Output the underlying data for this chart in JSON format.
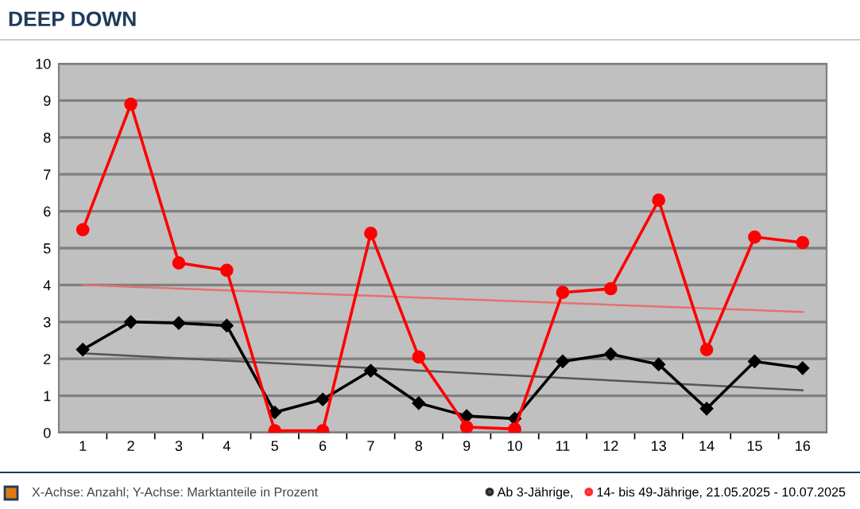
{
  "chart_data": {
    "type": "line",
    "title": "DEEP DOWN",
    "categories": [
      "1",
      "2",
      "3",
      "4",
      "5",
      "6",
      "7",
      "8",
      "9",
      "10",
      "11",
      "12",
      "13",
      "14",
      "15",
      "16"
    ],
    "series": [
      {
        "name": "Ab 3-Jährige,",
        "color": "#000000",
        "marker": "diamond",
        "values": [
          2.25,
          3.0,
          2.97,
          2.9,
          0.55,
          0.9,
          1.68,
          0.8,
          0.45,
          0.38,
          1.93,
          2.13,
          1.85,
          0.65,
          1.93,
          1.75
        ]
      },
      {
        "name": "14- bis 49-Jährige, 21.05.2025 - 10.07.2025",
        "color": "#ff0000",
        "marker": "circle",
        "values": [
          5.5,
          8.9,
          4.6,
          4.4,
          0.05,
          0.05,
          5.4,
          2.05,
          0.15,
          0.1,
          3.8,
          3.9,
          6.3,
          2.25,
          5.3,
          5.15
        ]
      },
      {
        "type": "line",
        "color": "#555555",
        "marker": "none",
        "x": [
          "1",
          "16"
        ],
        "values": [
          2.15,
          1.15
        ]
      },
      {
        "type": "line",
        "color": "#e87070",
        "marker": "none",
        "x": [
          "1",
          "16"
        ],
        "values": [
          4.0,
          3.27
        ]
      }
    ],
    "ylim": [
      0,
      10
    ],
    "yticks": [
      0,
      1,
      2,
      3,
      4,
      5,
      6,
      7,
      8,
      9,
      10
    ],
    "grid": "y",
    "legend": "bottom right",
    "annotations": [
      "X-Achse: Anzahl; Y-Achse: Marktanteile in Prozent"
    ]
  }
}
